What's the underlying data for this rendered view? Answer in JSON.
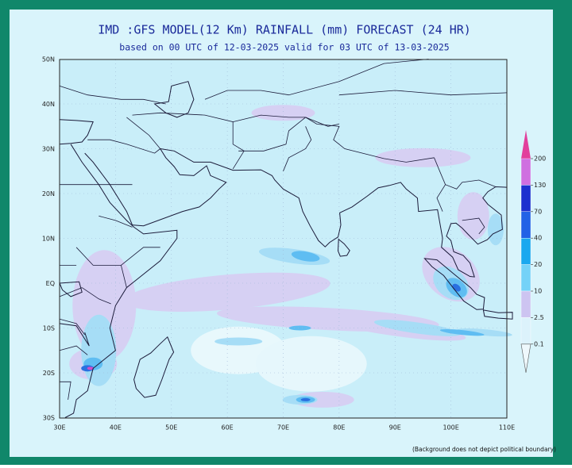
{
  "header": {
    "title": "IMD :GFS MODEL(12 Km) RAINFALL (mm) FORECAST (24 HR)",
    "subtitle": "based on 00 UTC of 12-03-2025 valid for 03 UTC of 13-03-2025"
  },
  "map": {
    "lat_labels": [
      "50N",
      "40N",
      "30N",
      "20N",
      "10N",
      "EQ",
      "10S",
      "20S",
      "30S"
    ],
    "lon_labels": [
      "30E",
      "40E",
      "50E",
      "60E",
      "70E",
      "80E",
      "90E",
      "100E",
      "110E"
    ]
  },
  "legend": {
    "labels": [
      "200",
      "130",
      "70",
      "40",
      "20",
      "10",
      "2.5",
      "0.1"
    ],
    "colors": [
      "#e2409c",
      "#cf6fe0",
      "#1c30cf",
      "#2262e6",
      "#1aa8ef",
      "#74d2f8",
      "#cdc4f1",
      "#dcf2fb",
      "#eef8fc"
    ]
  },
  "footnote": "(Background does not depict political boundary)"
}
